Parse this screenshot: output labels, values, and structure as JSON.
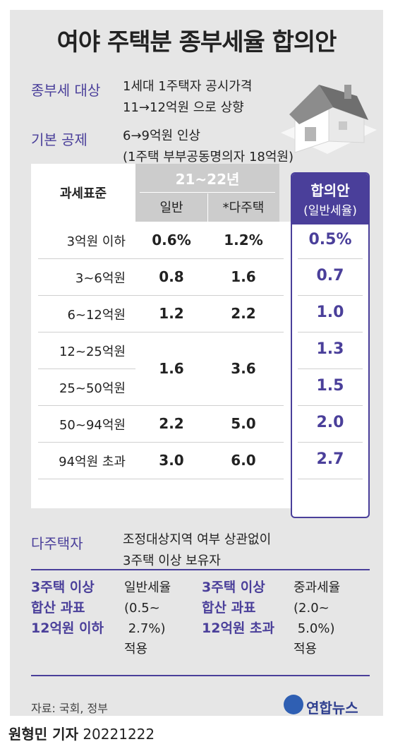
{
  "title": "여야 주택분 종부세율 합의안",
  "info": [
    {
      "label": "종부세 대상",
      "lines": [
        "1세대 1주택자 공시가격",
        "11→12억원 으로 상향"
      ]
    },
    {
      "label": "기본 공제",
      "lines": [
        "6→9억원 인상",
        "(1주택 부부공동명의자 18억원)"
      ]
    }
  ],
  "table": {
    "col_header": "과세표준",
    "year_header": "21~22년",
    "sub_general": "일반",
    "sub_multi": "*다주택",
    "agree_header": "합의안",
    "agree_sub": "(일반세율)",
    "rows": [
      {
        "label": "3억원 이하",
        "general": "0.6%",
        "multi": "1.2%",
        "agree": "0.5%"
      },
      {
        "label": "3~6억원",
        "general": "0.8",
        "multi": "1.6",
        "agree": "0.7"
      },
      {
        "label": "6~12억원",
        "general": "1.2",
        "multi": "2.2",
        "agree": "1.0"
      },
      {
        "label": "12~25억원",
        "general": "1.6",
        "multi": "3.6",
        "agree": "1.3"
      },
      {
        "label": "25~50억원",
        "agree": "1.5"
      },
      {
        "label": "50~94억원",
        "general": "2.2",
        "multi": "5.0",
        "agree": "2.0"
      },
      {
        "label": "94억원 초과",
        "general": "3.0",
        "multi": "6.0",
        "agree": "2.7"
      }
    ]
  },
  "multi_owner": {
    "label": "다주택자",
    "lines": [
      "조정대상지역 여부 상관없이",
      "3주택 이상 보유자"
    ]
  },
  "boxes": [
    {
      "label": [
        "3주택 이상",
        "합산 과표",
        "12억원 이하"
      ],
      "text": [
        "일반세율",
        "(0.5~",
        " 2.7%)",
        "적용"
      ]
    },
    {
      "label": [
        "3주택 이상",
        "합산 과표",
        "12억원 초과"
      ],
      "text": [
        "중과세율",
        "(2.0~",
        " 5.0%)",
        "적용"
      ]
    }
  ],
  "source": "자료: 국회, 정부",
  "logo_text": "연합뉴스",
  "byline_name": "원형민 기자",
  "byline_date": "20221222",
  "colors": {
    "accent": "#4a3f9a",
    "panel": "#e6e6e6",
    "header_gray": "#cccccc"
  }
}
